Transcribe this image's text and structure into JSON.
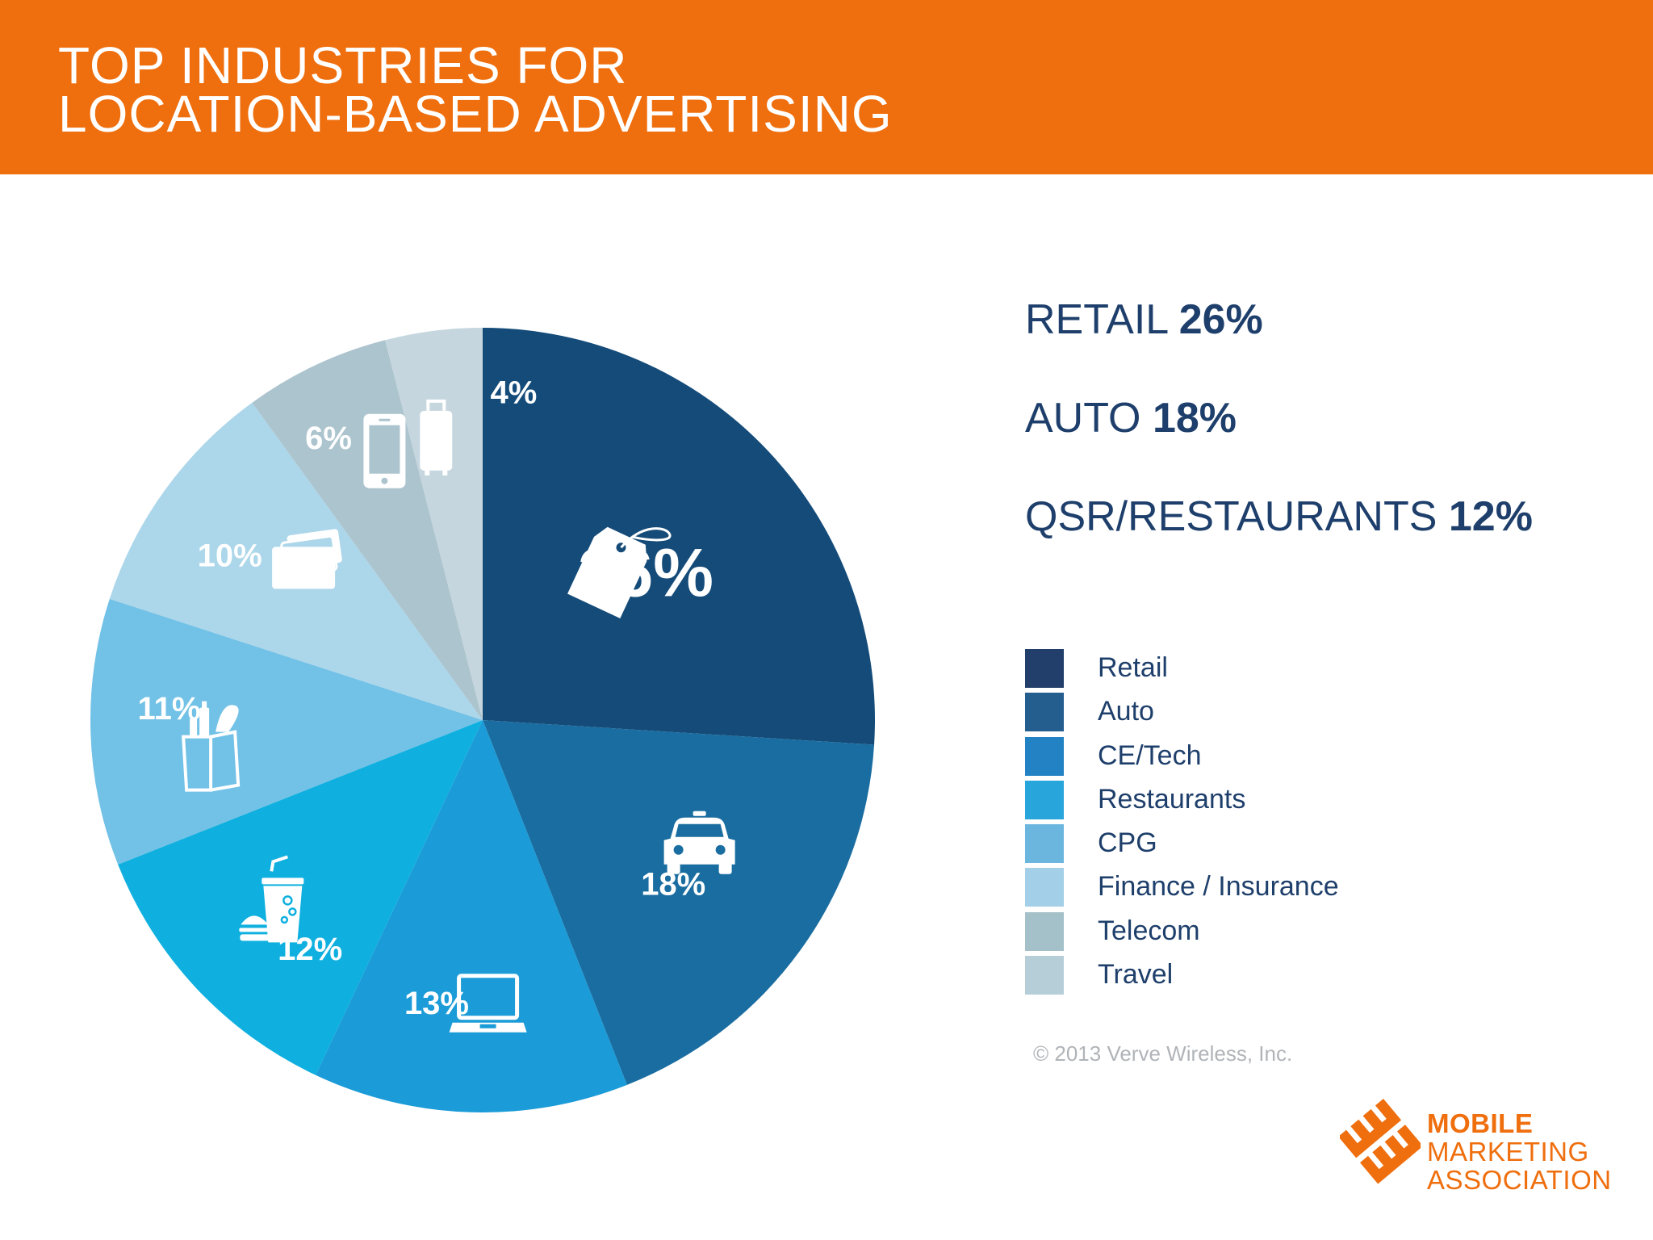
{
  "title": {
    "line1": "TOP INDUSTRIES FOR",
    "line2": "LOCATION-BASED ADVERTISING"
  },
  "highlights": [
    {
      "label": "RETAIL",
      "value": "26%"
    },
    {
      "label": "AUTO",
      "value": "18%"
    },
    {
      "label": "QSR/RESTAURANTS",
      "value": "12%"
    }
  ],
  "chart_data": {
    "type": "pie",
    "categories": [
      "Retail",
      "Auto",
      "CE/Tech",
      "Restaurants",
      "CPG",
      "Finance / Insurance",
      "Telecom",
      "Travel"
    ],
    "values": [
      26,
      18,
      13,
      12,
      11,
      10,
      6,
      4
    ],
    "value_labels": [
      "26%",
      "18%",
      "13%",
      "12%",
      "11%",
      "10%",
      "6%",
      "4%"
    ],
    "colors": [
      "#144b79",
      "#1a6da0",
      "#1b9bd7",
      "#0fb0df",
      "#72c1e6",
      "#acd6ea",
      "#acc4ce",
      "#c6d6de"
    ],
    "icons": [
      "price-tag-icon",
      "car-icon",
      "laptop-icon",
      "drink-and-burger-icon",
      "grocery-bag-icon",
      "credit-cards-icon",
      "smartphone-icon",
      "suitcase-icon"
    ],
    "legend_placement": "right",
    "legend_swatch_colors": [
      "#223e6b",
      "#245e8f",
      "#2282c3",
      "#28a6dc",
      "#6bb6df",
      "#a4cfe8",
      "#a4c0c8",
      "#b6ced8"
    ]
  },
  "copyright": "© 2013 Verve Wireless, Inc.",
  "logo": {
    "lines": [
      "MOBILE",
      "MARKETING",
      "ASSOCIATION"
    ],
    "color": "#ef6e0d"
  },
  "colors": {
    "header": "#ef6e0d",
    "text": "#1e3f6b"
  }
}
